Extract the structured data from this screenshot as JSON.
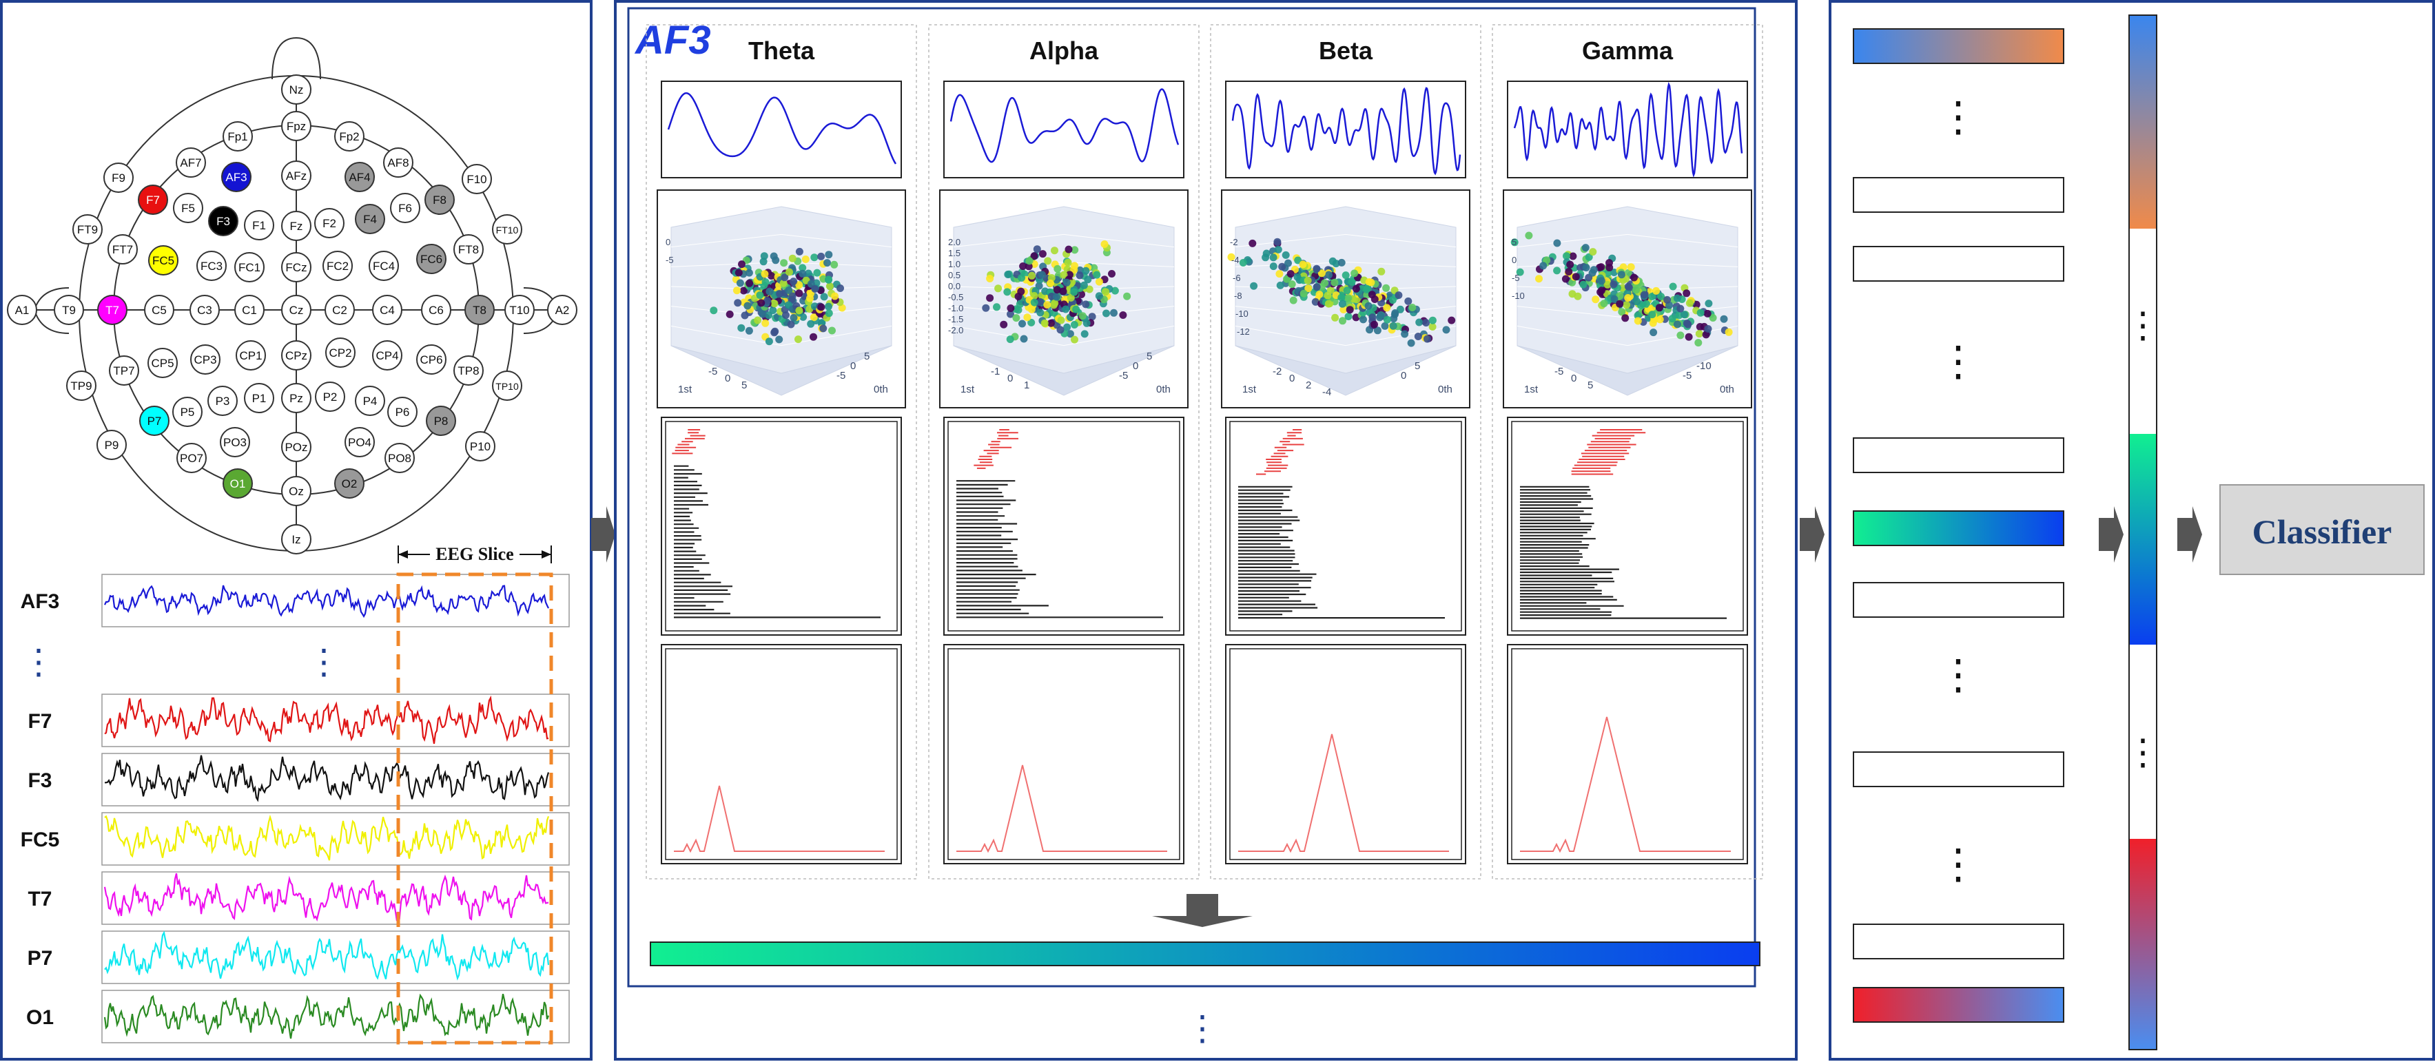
{
  "electrode_map": {
    "electrodes": [
      {
        "label": "Nz"
      },
      {
        "label": "Fpz"
      },
      {
        "label": "Fp1"
      },
      {
        "label": "Fp2"
      },
      {
        "label": "F9"
      },
      {
        "label": "AF7"
      },
      {
        "label": "AF3"
      },
      {
        "label": "AFz"
      },
      {
        "label": "AF4"
      },
      {
        "label": "AF8"
      },
      {
        "label": "F10"
      },
      {
        "label": "F7"
      },
      {
        "label": "F5"
      },
      {
        "label": "F3"
      },
      {
        "label": "F1"
      },
      {
        "label": "Fz"
      },
      {
        "label": "F2"
      },
      {
        "label": "F4"
      },
      {
        "label": "F6"
      },
      {
        "label": "F8"
      },
      {
        "label": "FT9"
      },
      {
        "label": "FT7"
      },
      {
        "label": "FC5"
      },
      {
        "label": "FC3"
      },
      {
        "label": "FC1"
      },
      {
        "label": "FCz"
      },
      {
        "label": "FC2"
      },
      {
        "label": "FC4"
      },
      {
        "label": "FC6"
      },
      {
        "label": "FT8"
      },
      {
        "label": "FT10"
      },
      {
        "label": "A1"
      },
      {
        "label": "T9"
      },
      {
        "label": "T7"
      },
      {
        "label": "C5"
      },
      {
        "label": "C3"
      },
      {
        "label": "C1"
      },
      {
        "label": "Cz"
      },
      {
        "label": "C2"
      },
      {
        "label": "C4"
      },
      {
        "label": "C6"
      },
      {
        "label": "T8"
      },
      {
        "label": "T10"
      },
      {
        "label": "A2"
      },
      {
        "label": "TP9"
      },
      {
        "label": "TP7"
      },
      {
        "label": "CP5"
      },
      {
        "label": "CP3"
      },
      {
        "label": "CP1"
      },
      {
        "label": "CPz"
      },
      {
        "label": "CP2"
      },
      {
        "label": "CP4"
      },
      {
        "label": "CP6"
      },
      {
        "label": "TP8"
      },
      {
        "label": "TP10"
      },
      {
        "label": "P7"
      },
      {
        "label": "P5"
      },
      {
        "label": "P3"
      },
      {
        "label": "P1"
      },
      {
        "label": "Pz"
      },
      {
        "label": "P2"
      },
      {
        "label": "P4"
      },
      {
        "label": "P6"
      },
      {
        "label": "P8"
      },
      {
        "label": "P9"
      },
      {
        "label": "PO7"
      },
      {
        "label": "PO3"
      },
      {
        "label": "POz"
      },
      {
        "label": "PO4"
      },
      {
        "label": "PO8"
      },
      {
        "label": "P10"
      },
      {
        "label": "O1"
      },
      {
        "label": "Oz"
      },
      {
        "label": "O2"
      },
      {
        "label": "Iz"
      }
    ],
    "highlight_colors": {
      "AF3": "#1414d2",
      "F7": "#e81010",
      "F3": "#000000",
      "FC5": "#ffff00",
      "T7": "#ff00ff",
      "P7": "#00ffff",
      "O1": "#5aa832",
      "AF4": "#999999",
      "F4": "#999999",
      "F8": "#999999",
      "FC6": "#999999",
      "T8": "#999999",
      "P8": "#999999",
      "O2": "#999999"
    }
  },
  "eeg_slice_label": "EEG Slice",
  "signals": [
    {
      "label": "AF3",
      "color": "#1a1ad6"
    },
    {
      "label": "F7",
      "color": "#e01515"
    },
    {
      "label": "F3",
      "color": "#111111"
    },
    {
      "label": "FC5",
      "color": "#f0f000"
    },
    {
      "label": "T7",
      "color": "#ee10ee"
    },
    {
      "label": "P7",
      "color": "#10e8f0"
    },
    {
      "label": "O1",
      "color": "#2a8a22"
    }
  ],
  "channel_label": "AF3",
  "bands": [
    {
      "name": "Theta",
      "wave_freq": 6,
      "axis_z": [
        "0",
        "-5"
      ],
      "axis_left": [
        "1st",
        "-5",
        "0",
        "5"
      ],
      "axis_right": [
        "-5",
        "0",
        "5",
        "0th"
      ]
    },
    {
      "name": "Alpha",
      "wave_freq": 10,
      "axis_z": [
        "2.0",
        "1.5",
        "1.0",
        "0.5",
        "0.0",
        "-0.5",
        "-1.0",
        "-1.5",
        "-2.0"
      ],
      "axis_left": [
        "1st",
        "-1",
        "0",
        "1"
      ],
      "axis_right": [
        "-5",
        "0",
        "5",
        "0th"
      ]
    },
    {
      "name": "Beta",
      "wave_freq": 24,
      "axis_z": [
        "-2",
        "-4",
        "-6",
        "-8",
        "-10",
        "-12"
      ],
      "axis_left": [
        "1st",
        "-2",
        "0",
        "2",
        "-4"
      ],
      "axis_right": [
        "0",
        "5",
        "0th"
      ]
    },
    {
      "name": "Gamma",
      "wave_freq": 30,
      "axis_z": [
        "5",
        "0",
        "-5",
        "-10"
      ],
      "axis_left": [
        "1st",
        "-5",
        "0",
        "5"
      ],
      "axis_right": [
        "-5",
        "-10",
        "0th"
      ]
    }
  ],
  "colors": {
    "panel_border": "#1f3f8f",
    "arrow": "#555555",
    "feature_gradient": [
      "#11ef91",
      "#0a3ef0"
    ],
    "top_bar_gradient": [
      "#3a86ee",
      "#f08a4a"
    ],
    "bottom_bar_gradient": [
      "#f0202a",
      "#4a8ef0"
    ],
    "classifier_text": "#1f3f75",
    "classifier_bg": "#d8d8d8"
  },
  "classifier_label": "Classifier"
}
